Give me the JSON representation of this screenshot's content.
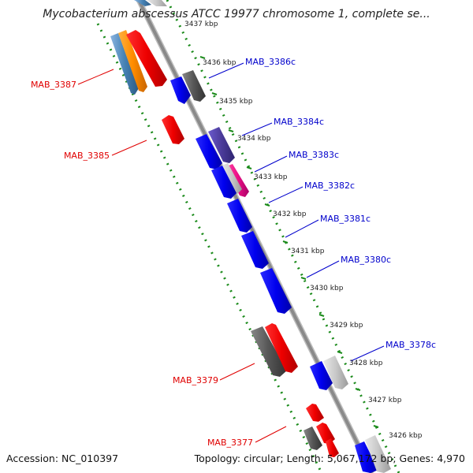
{
  "title": "Mycobacterium abscessus ATCC 19977 chromosome 1, complete se...",
  "footer": {
    "accession": "Accession: NC_010397",
    "summary": "Topology: circular; Length: 5,067,172 bp; Genes: 4,970"
  },
  "colors": {
    "backbone": "#8a8a8a",
    "ruler": "#1a8a1a",
    "forward_label": "#e00000",
    "reverse_label": "#0000cc"
  },
  "ticks": [
    {
      "label": "3437 kbp"
    },
    {
      "label": "3436 kbp"
    },
    {
      "label": "3435 kbp"
    },
    {
      "label": "3434 kbp"
    },
    {
      "label": "3433 kbp"
    },
    {
      "label": "3432 kbp"
    },
    {
      "label": "3431 kbp"
    },
    {
      "label": "3430 kbp"
    },
    {
      "label": "3429 kbp"
    },
    {
      "label": "3428 kbp"
    },
    {
      "label": "3427 kbp"
    },
    {
      "label": "3426 kbp"
    }
  ],
  "gene_labels_reverse": [
    {
      "label": "MAB_3386c"
    },
    {
      "label": "MAB_3384c"
    },
    {
      "label": "MAB_3383c"
    },
    {
      "label": "MAB_3382c"
    },
    {
      "label": "MAB_3381c"
    },
    {
      "label": "MAB_3380c"
    },
    {
      "label": "MAB_3378c"
    }
  ],
  "gene_labels_forward": [
    {
      "label": "MAB_3387"
    },
    {
      "label": "MAB_3385"
    },
    {
      "label": "MAB_3379"
    },
    {
      "label": "MAB_3377"
    }
  ]
}
